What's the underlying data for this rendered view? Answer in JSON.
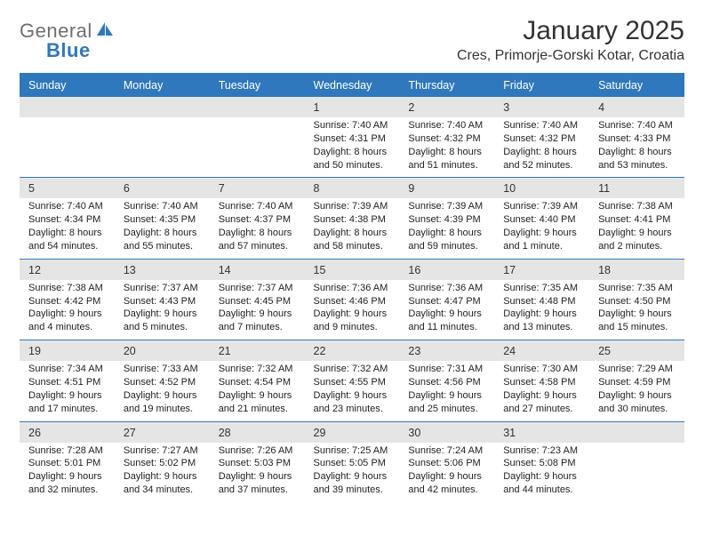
{
  "brand": {
    "text1": "General",
    "text2": "Blue",
    "color_gray": "#6f6f6f",
    "color_blue": "#2f78bd"
  },
  "title": "January 2025",
  "location": "Cres, Primorje-Gorski Kotar, Croatia",
  "day_headers": [
    "Sunday",
    "Monday",
    "Tuesday",
    "Wednesday",
    "Thursday",
    "Friday",
    "Saturday"
  ],
  "colors": {
    "header_bg": "#2f78bd",
    "header_text": "#ffffff",
    "rule": "#2f78bd",
    "daynum_bg": "#e5e5e5",
    "body_text": "#222222",
    "page_bg": "#ffffff"
  },
  "typography": {
    "title_fontsize": 30,
    "location_fontsize": 16,
    "header_fontsize": 12.5,
    "daynum_fontsize": 12.5,
    "detail_fontsize": 11
  },
  "weeks": [
    [
      null,
      null,
      null,
      {
        "num": "1",
        "sunrise": "Sunrise: 7:40 AM",
        "sunset": "Sunset: 4:31 PM",
        "day1": "Daylight: 8 hours",
        "day2": "and 50 minutes."
      },
      {
        "num": "2",
        "sunrise": "Sunrise: 7:40 AM",
        "sunset": "Sunset: 4:32 PM",
        "day1": "Daylight: 8 hours",
        "day2": "and 51 minutes."
      },
      {
        "num": "3",
        "sunrise": "Sunrise: 7:40 AM",
        "sunset": "Sunset: 4:32 PM",
        "day1": "Daylight: 8 hours",
        "day2": "and 52 minutes."
      },
      {
        "num": "4",
        "sunrise": "Sunrise: 7:40 AM",
        "sunset": "Sunset: 4:33 PM",
        "day1": "Daylight: 8 hours",
        "day2": "and 53 minutes."
      }
    ],
    [
      {
        "num": "5",
        "sunrise": "Sunrise: 7:40 AM",
        "sunset": "Sunset: 4:34 PM",
        "day1": "Daylight: 8 hours",
        "day2": "and 54 minutes."
      },
      {
        "num": "6",
        "sunrise": "Sunrise: 7:40 AM",
        "sunset": "Sunset: 4:35 PM",
        "day1": "Daylight: 8 hours",
        "day2": "and 55 minutes."
      },
      {
        "num": "7",
        "sunrise": "Sunrise: 7:40 AM",
        "sunset": "Sunset: 4:37 PM",
        "day1": "Daylight: 8 hours",
        "day2": "and 57 minutes."
      },
      {
        "num": "8",
        "sunrise": "Sunrise: 7:39 AM",
        "sunset": "Sunset: 4:38 PM",
        "day1": "Daylight: 8 hours",
        "day2": "and 58 minutes."
      },
      {
        "num": "9",
        "sunrise": "Sunrise: 7:39 AM",
        "sunset": "Sunset: 4:39 PM",
        "day1": "Daylight: 8 hours",
        "day2": "and 59 minutes."
      },
      {
        "num": "10",
        "sunrise": "Sunrise: 7:39 AM",
        "sunset": "Sunset: 4:40 PM",
        "day1": "Daylight: 9 hours",
        "day2": "and 1 minute."
      },
      {
        "num": "11",
        "sunrise": "Sunrise: 7:38 AM",
        "sunset": "Sunset: 4:41 PM",
        "day1": "Daylight: 9 hours",
        "day2": "and 2 minutes."
      }
    ],
    [
      {
        "num": "12",
        "sunrise": "Sunrise: 7:38 AM",
        "sunset": "Sunset: 4:42 PM",
        "day1": "Daylight: 9 hours",
        "day2": "and 4 minutes."
      },
      {
        "num": "13",
        "sunrise": "Sunrise: 7:37 AM",
        "sunset": "Sunset: 4:43 PM",
        "day1": "Daylight: 9 hours",
        "day2": "and 5 minutes."
      },
      {
        "num": "14",
        "sunrise": "Sunrise: 7:37 AM",
        "sunset": "Sunset: 4:45 PM",
        "day1": "Daylight: 9 hours",
        "day2": "and 7 minutes."
      },
      {
        "num": "15",
        "sunrise": "Sunrise: 7:36 AM",
        "sunset": "Sunset: 4:46 PM",
        "day1": "Daylight: 9 hours",
        "day2": "and 9 minutes."
      },
      {
        "num": "16",
        "sunrise": "Sunrise: 7:36 AM",
        "sunset": "Sunset: 4:47 PM",
        "day1": "Daylight: 9 hours",
        "day2": "and 11 minutes."
      },
      {
        "num": "17",
        "sunrise": "Sunrise: 7:35 AM",
        "sunset": "Sunset: 4:48 PM",
        "day1": "Daylight: 9 hours",
        "day2": "and 13 minutes."
      },
      {
        "num": "18",
        "sunrise": "Sunrise: 7:35 AM",
        "sunset": "Sunset: 4:50 PM",
        "day1": "Daylight: 9 hours",
        "day2": "and 15 minutes."
      }
    ],
    [
      {
        "num": "19",
        "sunrise": "Sunrise: 7:34 AM",
        "sunset": "Sunset: 4:51 PM",
        "day1": "Daylight: 9 hours",
        "day2": "and 17 minutes."
      },
      {
        "num": "20",
        "sunrise": "Sunrise: 7:33 AM",
        "sunset": "Sunset: 4:52 PM",
        "day1": "Daylight: 9 hours",
        "day2": "and 19 minutes."
      },
      {
        "num": "21",
        "sunrise": "Sunrise: 7:32 AM",
        "sunset": "Sunset: 4:54 PM",
        "day1": "Daylight: 9 hours",
        "day2": "and 21 minutes."
      },
      {
        "num": "22",
        "sunrise": "Sunrise: 7:32 AM",
        "sunset": "Sunset: 4:55 PM",
        "day1": "Daylight: 9 hours",
        "day2": "and 23 minutes."
      },
      {
        "num": "23",
        "sunrise": "Sunrise: 7:31 AM",
        "sunset": "Sunset: 4:56 PM",
        "day1": "Daylight: 9 hours",
        "day2": "and 25 minutes."
      },
      {
        "num": "24",
        "sunrise": "Sunrise: 7:30 AM",
        "sunset": "Sunset: 4:58 PM",
        "day1": "Daylight: 9 hours",
        "day2": "and 27 minutes."
      },
      {
        "num": "25",
        "sunrise": "Sunrise: 7:29 AM",
        "sunset": "Sunset: 4:59 PM",
        "day1": "Daylight: 9 hours",
        "day2": "and 30 minutes."
      }
    ],
    [
      {
        "num": "26",
        "sunrise": "Sunrise: 7:28 AM",
        "sunset": "Sunset: 5:01 PM",
        "day1": "Daylight: 9 hours",
        "day2": "and 32 minutes."
      },
      {
        "num": "27",
        "sunrise": "Sunrise: 7:27 AM",
        "sunset": "Sunset: 5:02 PM",
        "day1": "Daylight: 9 hours",
        "day2": "and 34 minutes."
      },
      {
        "num": "28",
        "sunrise": "Sunrise: 7:26 AM",
        "sunset": "Sunset: 5:03 PM",
        "day1": "Daylight: 9 hours",
        "day2": "and 37 minutes."
      },
      {
        "num": "29",
        "sunrise": "Sunrise: 7:25 AM",
        "sunset": "Sunset: 5:05 PM",
        "day1": "Daylight: 9 hours",
        "day2": "and 39 minutes."
      },
      {
        "num": "30",
        "sunrise": "Sunrise: 7:24 AM",
        "sunset": "Sunset: 5:06 PM",
        "day1": "Daylight: 9 hours",
        "day2": "and 42 minutes."
      },
      {
        "num": "31",
        "sunrise": "Sunrise: 7:23 AM",
        "sunset": "Sunset: 5:08 PM",
        "day1": "Daylight: 9 hours",
        "day2": "and 44 minutes."
      },
      null
    ]
  ]
}
